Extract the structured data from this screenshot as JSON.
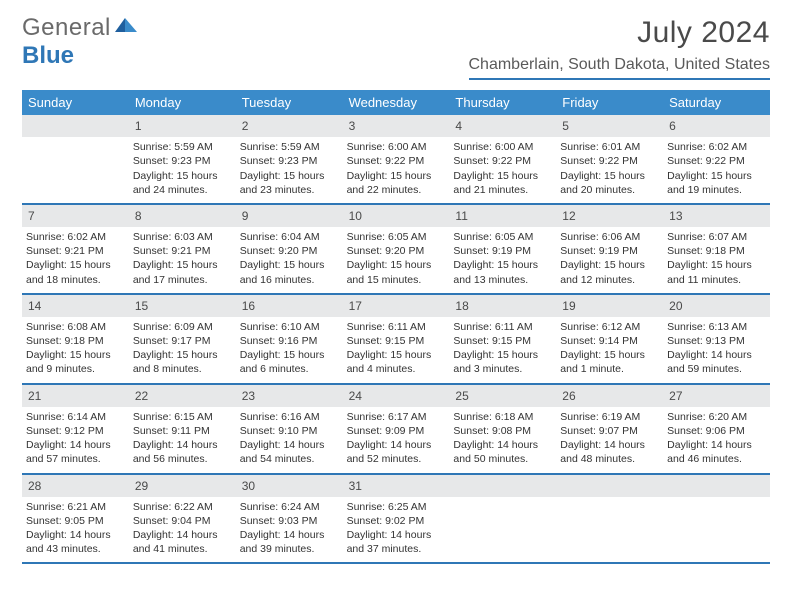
{
  "logo": {
    "text1": "General",
    "text2": "Blue"
  },
  "title": "July 2024",
  "location": "Chamberlain, South Dakota, United States",
  "colors": {
    "header_bg": "#3a8bca",
    "rule": "#2f77b6",
    "daynum_bg": "#e7e8e9",
    "text": "#333333",
    "title_text": "#4a4a4a"
  },
  "weekdays": [
    "Sunday",
    "Monday",
    "Tuesday",
    "Wednesday",
    "Thursday",
    "Friday",
    "Saturday"
  ],
  "start_offset": 1,
  "days": [
    {
      "n": 1,
      "sunrise": "5:59 AM",
      "sunset": "9:23 PM",
      "daylight": "15 hours and 24 minutes."
    },
    {
      "n": 2,
      "sunrise": "5:59 AM",
      "sunset": "9:23 PM",
      "daylight": "15 hours and 23 minutes."
    },
    {
      "n": 3,
      "sunrise": "6:00 AM",
      "sunset": "9:22 PM",
      "daylight": "15 hours and 22 minutes."
    },
    {
      "n": 4,
      "sunrise": "6:00 AM",
      "sunset": "9:22 PM",
      "daylight": "15 hours and 21 minutes."
    },
    {
      "n": 5,
      "sunrise": "6:01 AM",
      "sunset": "9:22 PM",
      "daylight": "15 hours and 20 minutes."
    },
    {
      "n": 6,
      "sunrise": "6:02 AM",
      "sunset": "9:22 PM",
      "daylight": "15 hours and 19 minutes."
    },
    {
      "n": 7,
      "sunrise": "6:02 AM",
      "sunset": "9:21 PM",
      "daylight": "15 hours and 18 minutes."
    },
    {
      "n": 8,
      "sunrise": "6:03 AM",
      "sunset": "9:21 PM",
      "daylight": "15 hours and 17 minutes."
    },
    {
      "n": 9,
      "sunrise": "6:04 AM",
      "sunset": "9:20 PM",
      "daylight": "15 hours and 16 minutes."
    },
    {
      "n": 10,
      "sunrise": "6:05 AM",
      "sunset": "9:20 PM",
      "daylight": "15 hours and 15 minutes."
    },
    {
      "n": 11,
      "sunrise": "6:05 AM",
      "sunset": "9:19 PM",
      "daylight": "15 hours and 13 minutes."
    },
    {
      "n": 12,
      "sunrise": "6:06 AM",
      "sunset": "9:19 PM",
      "daylight": "15 hours and 12 minutes."
    },
    {
      "n": 13,
      "sunrise": "6:07 AM",
      "sunset": "9:18 PM",
      "daylight": "15 hours and 11 minutes."
    },
    {
      "n": 14,
      "sunrise": "6:08 AM",
      "sunset": "9:18 PM",
      "daylight": "15 hours and 9 minutes."
    },
    {
      "n": 15,
      "sunrise": "6:09 AM",
      "sunset": "9:17 PM",
      "daylight": "15 hours and 8 minutes."
    },
    {
      "n": 16,
      "sunrise": "6:10 AM",
      "sunset": "9:16 PM",
      "daylight": "15 hours and 6 minutes."
    },
    {
      "n": 17,
      "sunrise": "6:11 AM",
      "sunset": "9:15 PM",
      "daylight": "15 hours and 4 minutes."
    },
    {
      "n": 18,
      "sunrise": "6:11 AM",
      "sunset": "9:15 PM",
      "daylight": "15 hours and 3 minutes."
    },
    {
      "n": 19,
      "sunrise": "6:12 AM",
      "sunset": "9:14 PM",
      "daylight": "15 hours and 1 minute."
    },
    {
      "n": 20,
      "sunrise": "6:13 AM",
      "sunset": "9:13 PM",
      "daylight": "14 hours and 59 minutes."
    },
    {
      "n": 21,
      "sunrise": "6:14 AM",
      "sunset": "9:12 PM",
      "daylight": "14 hours and 57 minutes."
    },
    {
      "n": 22,
      "sunrise": "6:15 AM",
      "sunset": "9:11 PM",
      "daylight": "14 hours and 56 minutes."
    },
    {
      "n": 23,
      "sunrise": "6:16 AM",
      "sunset": "9:10 PM",
      "daylight": "14 hours and 54 minutes."
    },
    {
      "n": 24,
      "sunrise": "6:17 AM",
      "sunset": "9:09 PM",
      "daylight": "14 hours and 52 minutes."
    },
    {
      "n": 25,
      "sunrise": "6:18 AM",
      "sunset": "9:08 PM",
      "daylight": "14 hours and 50 minutes."
    },
    {
      "n": 26,
      "sunrise": "6:19 AM",
      "sunset": "9:07 PM",
      "daylight": "14 hours and 48 minutes."
    },
    {
      "n": 27,
      "sunrise": "6:20 AM",
      "sunset": "9:06 PM",
      "daylight": "14 hours and 46 minutes."
    },
    {
      "n": 28,
      "sunrise": "6:21 AM",
      "sunset": "9:05 PM",
      "daylight": "14 hours and 43 minutes."
    },
    {
      "n": 29,
      "sunrise": "6:22 AM",
      "sunset": "9:04 PM",
      "daylight": "14 hours and 41 minutes."
    },
    {
      "n": 30,
      "sunrise": "6:24 AM",
      "sunset": "9:03 PM",
      "daylight": "14 hours and 39 minutes."
    },
    {
      "n": 31,
      "sunrise": "6:25 AM",
      "sunset": "9:02 PM",
      "daylight": "14 hours and 37 minutes."
    }
  ],
  "labels": {
    "sunrise": "Sunrise:",
    "sunset": "Sunset:",
    "daylight": "Daylight:"
  }
}
